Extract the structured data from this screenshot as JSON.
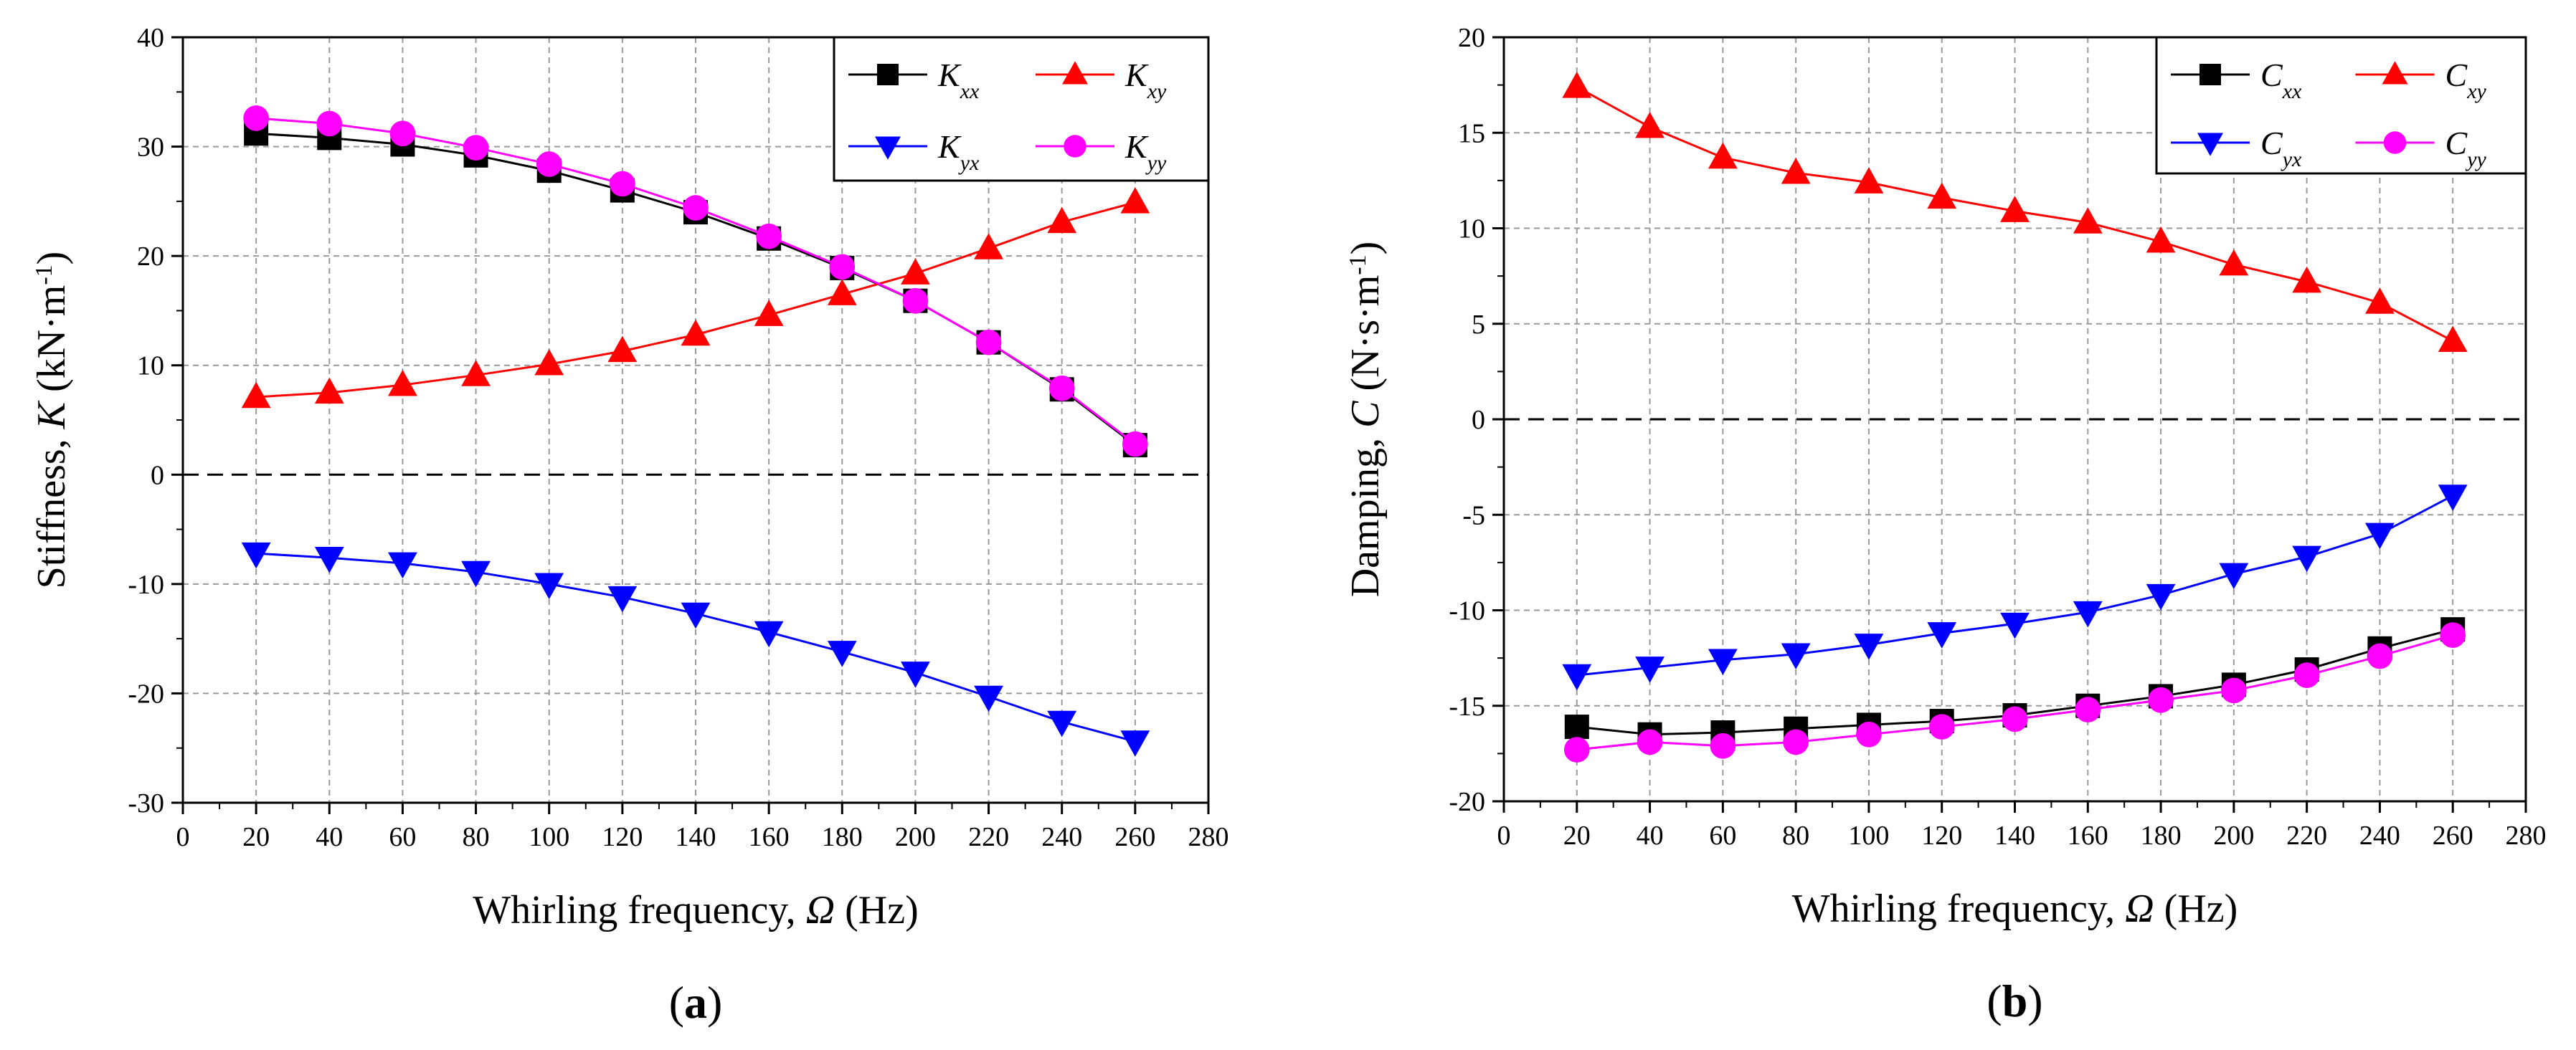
{
  "chart_data": [
    {
      "type": "line",
      "panel_label": {
        "open": "(",
        "letter": "a",
        "close": ")"
      },
      "xlabel": {
        "prefix": "Whirling frequency, ",
        "symbol": "Ω",
        "suffix": " (Hz)"
      },
      "ylabel": {
        "prefix": "Stiffness, ",
        "symbol": "K",
        "unit_open": " (kN·m",
        "exponent": "-1",
        "unit_close": ")"
      },
      "x": [
        20,
        40,
        60,
        80,
        100,
        120,
        140,
        160,
        180,
        200,
        220,
        240,
        260
      ],
      "xlim": [
        0,
        280
      ],
      "ylim": [
        -30,
        40
      ],
      "xticks": [
        "0",
        "20",
        "40",
        "60",
        "80",
        "100",
        "120",
        "140",
        "160",
        "180",
        "200",
        "220",
        "240",
        "260",
        "280"
      ],
      "yticks": [
        "-30",
        "-20",
        "-10",
        "0",
        "10",
        "20",
        "30",
        "40"
      ],
      "xtick_values": [
        0,
        20,
        40,
        60,
        80,
        100,
        120,
        140,
        160,
        180,
        200,
        220,
        240,
        260,
        280
      ],
      "ytick_values": [
        -30,
        -20,
        -10,
        0,
        10,
        20,
        30,
        40
      ],
      "grid": true,
      "zero_line": true,
      "legend_position": "top-right",
      "series": [
        {
          "name": "K_xx",
          "base": "K",
          "sub": "xx",
          "color": "#000000",
          "marker": "square",
          "values": [
            31.2,
            30.8,
            30.2,
            29.2,
            27.8,
            26.0,
            24.0,
            21.6,
            18.9,
            15.9,
            12.1,
            7.8,
            2.7
          ]
        },
        {
          "name": "K_xy",
          "base": "K",
          "sub": "xy",
          "color": "#ff0000",
          "marker": "triangle-up",
          "values": [
            7.1,
            7.5,
            8.2,
            9.1,
            10.1,
            11.3,
            12.8,
            14.6,
            16.5,
            18.4,
            20.7,
            23.1,
            24.9
          ]
        },
        {
          "name": "K_yx",
          "base": "K",
          "sub": "yx",
          "color": "#0000ff",
          "marker": "triangle-down",
          "values": [
            -7.2,
            -7.6,
            -8.1,
            -8.9,
            -10.0,
            -11.2,
            -12.7,
            -14.4,
            -16.2,
            -18.1,
            -20.3,
            -22.6,
            -24.4
          ]
        },
        {
          "name": "K_yy",
          "base": "K",
          "sub": "yy",
          "color": "#ff00ff",
          "marker": "circle",
          "values": [
            32.6,
            32.1,
            31.2,
            29.9,
            28.4,
            26.6,
            24.4,
            21.8,
            19.0,
            15.9,
            12.1,
            7.9,
            2.8
          ]
        }
      ]
    },
    {
      "type": "line",
      "panel_label": {
        "open": "(",
        "letter": "b",
        "close": ")"
      },
      "xlabel": {
        "prefix": "Whirling frequency, ",
        "symbol": "Ω",
        "suffix": " (Hz)"
      },
      "ylabel": {
        "prefix": "Damping, ",
        "symbol": "C",
        "unit_open": " (N·s·m",
        "exponent": "-1",
        "unit_close": ")"
      },
      "x": [
        20,
        40,
        60,
        80,
        100,
        120,
        140,
        160,
        180,
        200,
        220,
        240,
        260
      ],
      "xlim": [
        0,
        280
      ],
      "ylim": [
        -20,
        20
      ],
      "xticks": [
        "0",
        "20",
        "40",
        "60",
        "80",
        "100",
        "120",
        "140",
        "160",
        "180",
        "200",
        "220",
        "240",
        "260",
        "280"
      ],
      "yticks": [
        "-20",
        "-15",
        "-10",
        "-5",
        "0",
        "5",
        "10",
        "15",
        "20"
      ],
      "xtick_values": [
        0,
        20,
        40,
        60,
        80,
        100,
        120,
        140,
        160,
        180,
        200,
        220,
        240,
        260,
        280
      ],
      "ytick_values": [
        -20,
        -15,
        -10,
        -5,
        0,
        5,
        10,
        15,
        20
      ],
      "grid": true,
      "zero_line": true,
      "legend_position": "top-right",
      "series": [
        {
          "name": "C_xx",
          "base": "C",
          "sub": "xx",
          "color": "#000000",
          "marker": "square",
          "values": [
            -16.1,
            -16.5,
            -16.4,
            -16.2,
            -16.0,
            -15.8,
            -15.5,
            -15.0,
            -14.5,
            -13.9,
            -13.1,
            -12.0,
            -11.0
          ]
        },
        {
          "name": "C_xy",
          "base": "C",
          "sub": "xy",
          "color": "#ff0000",
          "marker": "triangle-up",
          "values": [
            17.4,
            15.3,
            13.7,
            12.9,
            12.4,
            11.6,
            10.9,
            10.3,
            9.3,
            8.1,
            7.2,
            6.1,
            4.1
          ]
        },
        {
          "name": "C_yx",
          "base": "C",
          "sub": "yx",
          "color": "#0000ff",
          "marker": "triangle-down",
          "values": [
            -13.4,
            -13.0,
            -12.6,
            -12.3,
            -11.8,
            -11.2,
            -10.7,
            -10.1,
            -9.2,
            -8.1,
            -7.2,
            -6.0,
            -4.0
          ]
        },
        {
          "name": "C_yy",
          "base": "C",
          "sub": "yy",
          "color": "#ff00ff",
          "marker": "circle",
          "values": [
            -17.3,
            -16.9,
            -17.1,
            -16.9,
            -16.5,
            -16.1,
            -15.7,
            -15.2,
            -14.7,
            -14.2,
            -13.4,
            -12.4,
            -11.3
          ]
        }
      ]
    }
  ]
}
